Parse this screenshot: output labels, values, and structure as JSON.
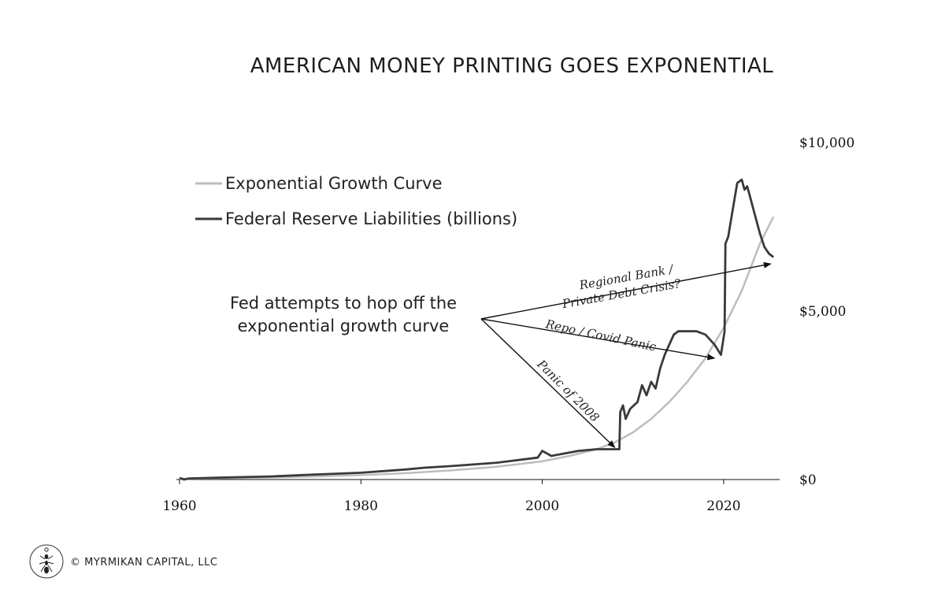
{
  "chart_data": {
    "type": "line",
    "title": "AMERICAN MONEY PRINTING GOES EXPONENTIAL",
    "xlabel": "",
    "ylabel": "",
    "xlim": [
      1960,
      2026
    ],
    "ylim": [
      0,
      10000
    ],
    "x_ticks": [
      {
        "value": 1960,
        "label": "1960"
      },
      {
        "value": 1980,
        "label": "1980"
      },
      {
        "value": 2000,
        "label": "2000"
      },
      {
        "value": 2020,
        "label": "2020"
      }
    ],
    "y_ticks": [
      {
        "value": 0,
        "label": "$0"
      },
      {
        "value": 5000,
        "label": "$5,000"
      },
      {
        "value": 10000,
        "label": "$10,000"
      }
    ],
    "grid": false,
    "legend_position": "top-left",
    "series": [
      {
        "name": "Exponential Growth Curve",
        "color": "#bdbdbd",
        "x": [
          1960,
          1965,
          1970,
          1975,
          1980,
          1985,
          1990,
          1995,
          2000,
          2003,
          2006,
          2008,
          2010,
          2012,
          2014,
          2016,
          2018,
          2020,
          2022,
          2024,
          2025.5
        ],
        "y": [
          20,
          40,
          60,
          90,
          130,
          190,
          270,
          380,
          540,
          700,
          900,
          1100,
          1400,
          1800,
          2300,
          2900,
          3600,
          4500,
          5600,
          7000,
          7800
        ]
      },
      {
        "name": "Federal Reserve Liabilities (billions)",
        "color": "#3a3a3a",
        "x": [
          1960,
          1960.5,
          1961,
          1965,
          1970,
          1975,
          1980,
          1985,
          1987,
          1990,
          1995,
          1999.5,
          2000,
          2001,
          2002,
          2004,
          2006,
          2008.5,
          2008.6,
          2008.9,
          2009.2,
          2009.7,
          2010.5,
          2011,
          2011.5,
          2012,
          2012.5,
          2013,
          2013.5,
          2014,
          2014.5,
          2015,
          2016,
          2017,
          2018,
          2019,
          2019.7,
          2020.1,
          2020.2,
          2020.5,
          2021,
          2021.5,
          2022,
          2022.3,
          2022.6,
          2023,
          2023.5,
          2024,
          2024.5,
          2025,
          2025.5
        ],
        "y": [
          50,
          0,
          30,
          60,
          90,
          150,
          200,
          300,
          350,
          400,
          500,
          650,
          850,
          700,
          750,
          850,
          900,
          900,
          2000,
          2200,
          1800,
          2100,
          2300,
          2800,
          2500,
          2900,
          2700,
          3300,
          3700,
          4000,
          4300,
          4400,
          4400,
          4400,
          4300,
          4000,
          3700,
          4400,
          7000,
          7200,
          8000,
          8800,
          8900,
          8600,
          8700,
          8300,
          7800,
          7300,
          6900,
          6700,
          6600
        ]
      }
    ],
    "annotations": [
      {
        "text": "Fed attempts to hop off the",
        "text2": "exponential growth curve"
      },
      {
        "text": "Panic of 2008",
        "target": {
          "x": 2008.0,
          "y": 950
        }
      },
      {
        "text": "Repo / Covid Panic",
        "target": {
          "x": 2019.0,
          "y": 3600
        }
      },
      {
        "text": "Regional Bank /",
        "text2": "Private Debt Crisis?",
        "target": {
          "x": 2025.2,
          "y": 6400
        }
      }
    ]
  },
  "copyright": "© MYRMIKAN CAPITAL, LLC",
  "logo_icon": "ant-icon"
}
